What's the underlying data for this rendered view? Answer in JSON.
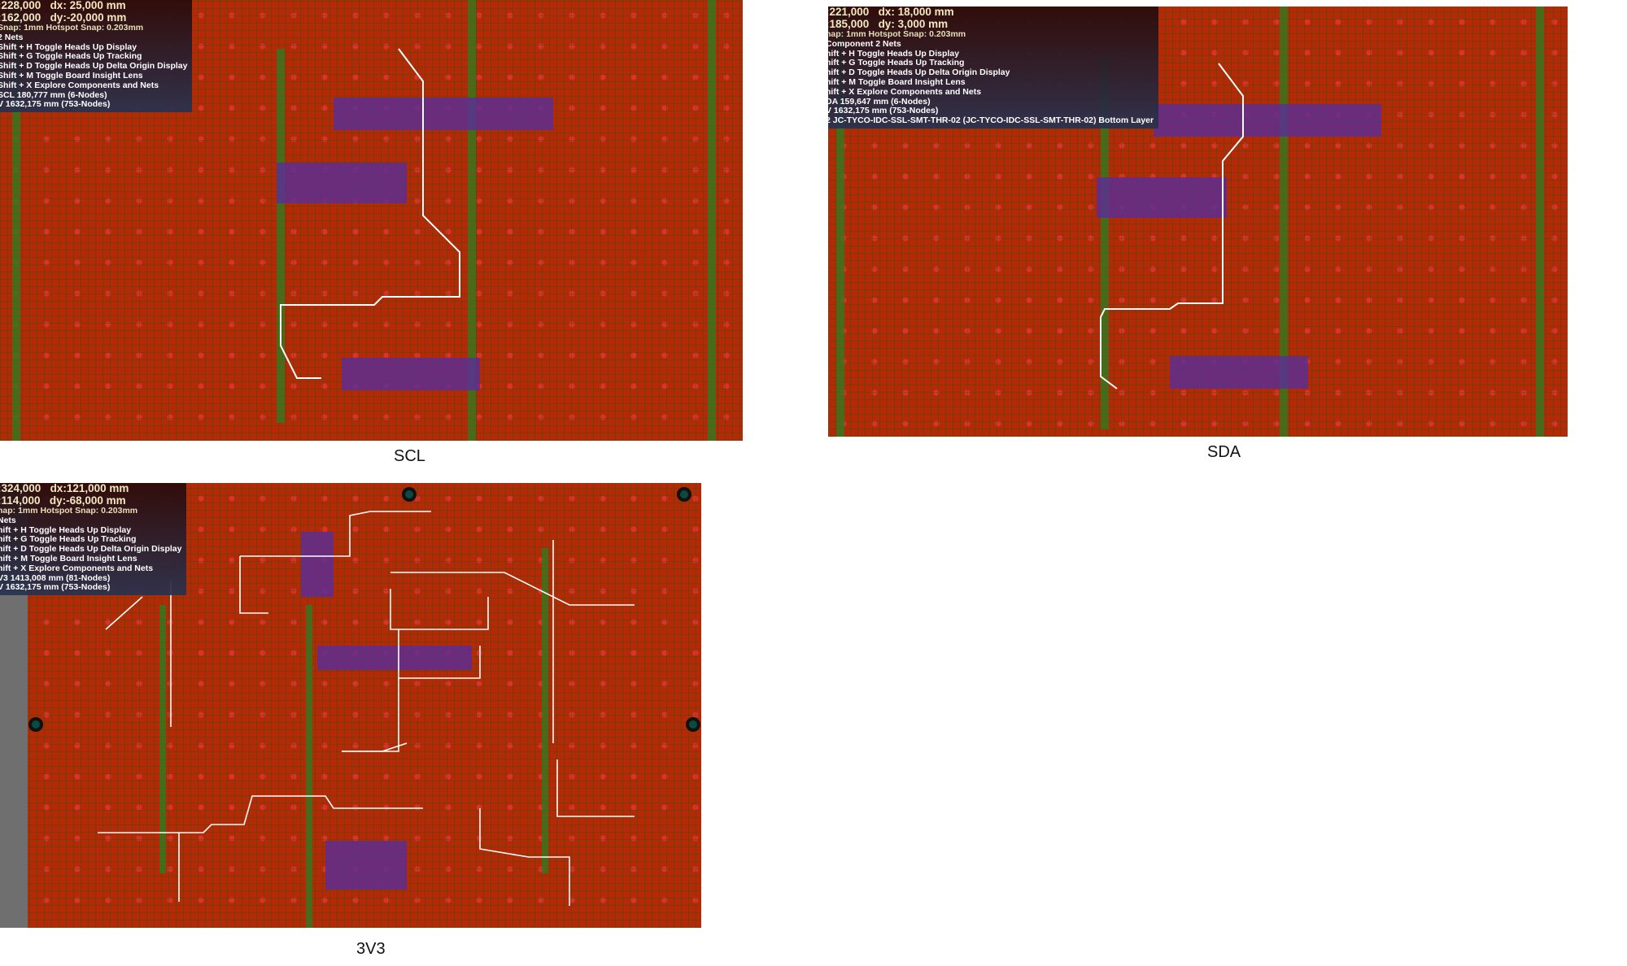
{
  "panels": [
    {
      "caption": "SCL",
      "hud": {
        "x": ":228,000",
        "dx": "dx: 25,000 mm",
        "y": ":162,000",
        "dy": "dy:-20,000 mm",
        "snap": "Snap: 1mm Hotspot Snap: 0.203mm",
        "context": "2 Nets",
        "shortcuts": [
          "Shift + H  Toggle Heads Up Display",
          "Shift + G  Toggle Heads Up Tracking",
          "Shift + D  Toggle Heads Up Delta Origin Display",
          "Shift + M  Toggle Board Insight Lens",
          "Shift + X  Explore Components and Nets"
        ],
        "nets": [
          "SCL 180,777 mm   (6-Nodes)",
          "V    1632,175 mm (753-Nodes)"
        ]
      }
    },
    {
      "caption": "SDA",
      "hud": {
        "x": ":221,000",
        "dx": "dx: 18,000 mm",
        "y": ":185,000",
        "dy": "dy:  3,000 mm",
        "snap": "nap: 1mm Hotspot Snap: 0.203mm",
        "context": "Component 2 Nets",
        "shortcuts": [
          "hift + H  Toggle Heads Up Display",
          "hift + G  Toggle Heads Up Tracking",
          "hift + D  Toggle Heads Up Delta Origin Display",
          "hift + M  Toggle Board Insight Lens",
          "hift + X  Explore Components and Nets"
        ],
        "nets": [
          "DA 159,647 mm   (6-Nodes)",
          "V    1632,175 mm (753-Nodes)",
          "2 JC-TYCO-IDC-SSL-SMT-THR-02 (JC-TYCO-IDC-SSL-SMT-THR-02) Bottom Layer"
        ]
      }
    },
    {
      "caption": "3V3",
      "hud": {
        "x": ":324,000",
        "dx": "dx:121,000 mm",
        "y": ":114,000",
        "dy": "dy:-68,000 mm",
        "snap": "nap: 1mm Hotspot Snap: 0.203mm",
        "context": "Nets",
        "shortcuts": [
          "hift + H  Toggle Heads Up Display",
          "hift + G  Toggle Heads Up Tracking",
          "hift + D  Toggle Heads Up Delta Origin Display",
          "hift + M  Toggle Board Insight Lens",
          "hift + X  Explore Components and Nets"
        ],
        "nets": [
          "V3 1413,008 mm (81-Nodes)",
          "V    1632,175 mm (753-Nodes)"
        ]
      }
    }
  ],
  "colors": {
    "board": "#b52a06",
    "trace_highlight": "#ffffff",
    "hud_bg": "#2a1414"
  }
}
